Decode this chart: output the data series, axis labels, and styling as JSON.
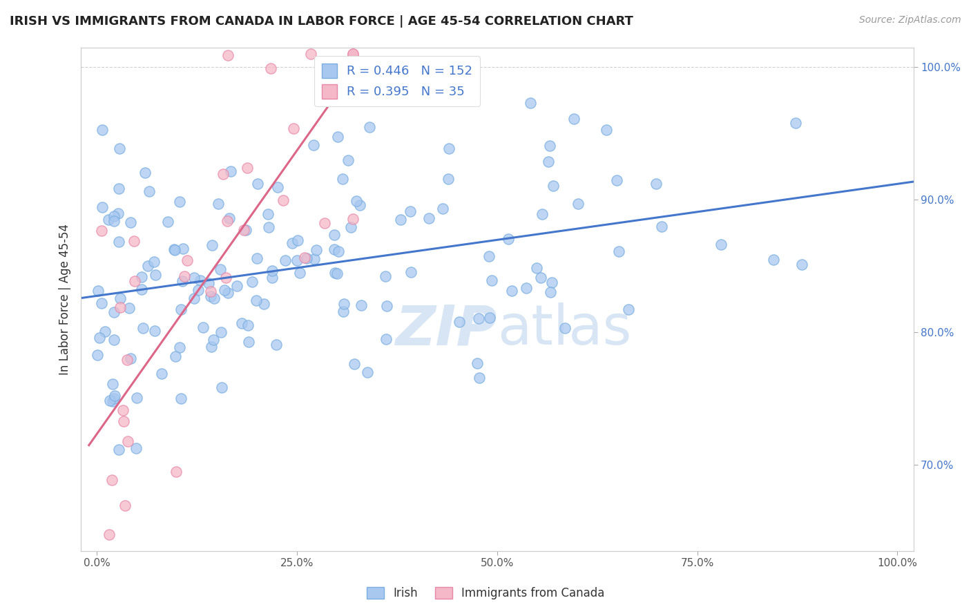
{
  "title": "IRISH VS IMMIGRANTS FROM CANADA IN LABOR FORCE | AGE 45-54 CORRELATION CHART",
  "source": "Source: ZipAtlas.com",
  "xlabel": "",
  "ylabel": "In Labor Force | Age 45-54",
  "xlim": [
    -0.02,
    1.02
  ],
  "ylim": [
    0.635,
    1.015
  ],
  "xticks": [
    0.0,
    0.25,
    0.5,
    0.75,
    1.0
  ],
  "xticklabels": [
    "0.0%",
    "25.0%",
    "50.0%",
    "75.0%",
    "100.0%"
  ],
  "yticks": [
    0.7,
    0.8,
    0.9,
    1.0
  ],
  "yticklabels": [
    "70.0%",
    "80.0%",
    "90.0%",
    "100.0%"
  ],
  "legend_labels": [
    "Irish",
    "Immigrants from Canada"
  ],
  "legend_R": [
    0.446,
    0.395
  ],
  "legend_N": [
    152,
    35
  ],
  "blue_color": "#a8c8f0",
  "pink_color": "#f4b8c8",
  "blue_edge_color": "#7aaee0",
  "pink_edge_color": "#e888a8",
  "blue_line_color": "#4477cc",
  "pink_line_color": "#dd6688",
  "watermark_color": "#c8daf0",
  "background_color": "#ffffff",
  "grid_color": "#cccccc"
}
